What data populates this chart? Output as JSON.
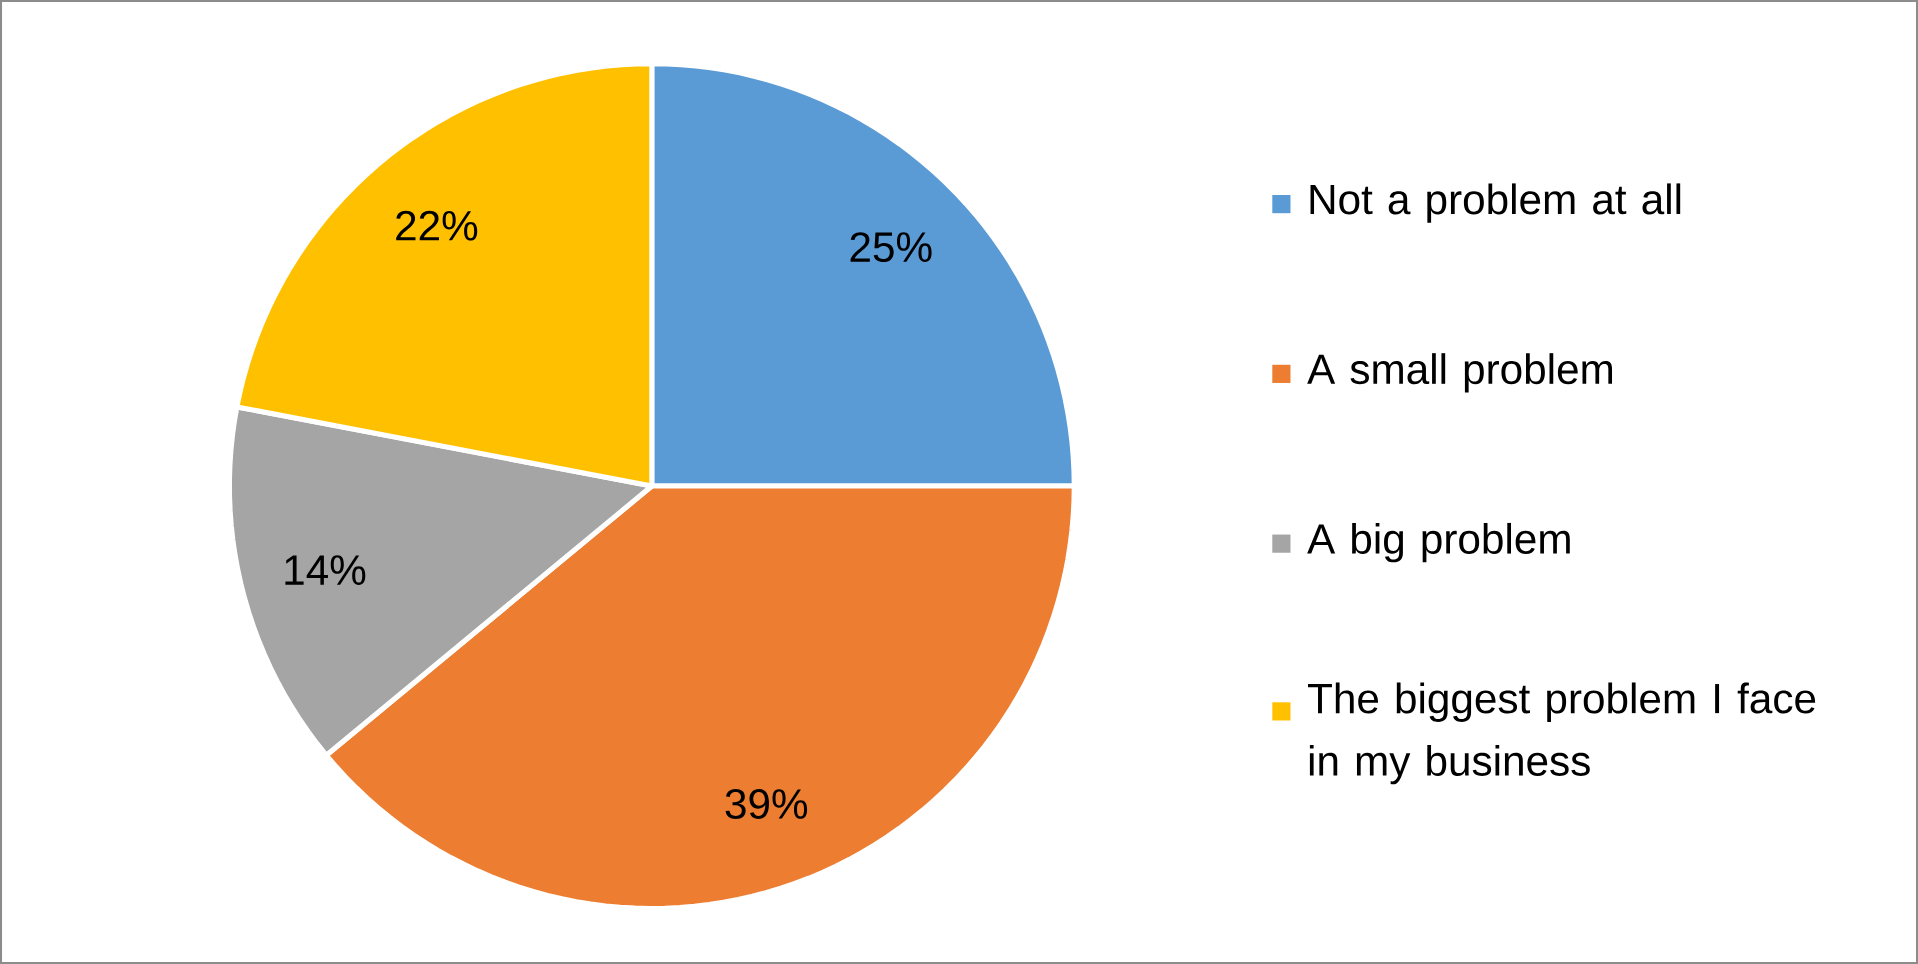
{
  "chart_data": {
    "type": "pie",
    "categories": [
      "Not a problem at all",
      "A small problem",
      "A big problem",
      "The biggest problem I face in my business"
    ],
    "values": [
      25,
      39,
      14,
      22
    ],
    "colors": [
      "#5b9bd5",
      "#ed7d31",
      "#a5a5a5",
      "#ffc000"
    ],
    "value_labels": [
      "25%",
      "39%",
      "14%",
      "22%"
    ],
    "legend": "right"
  }
}
